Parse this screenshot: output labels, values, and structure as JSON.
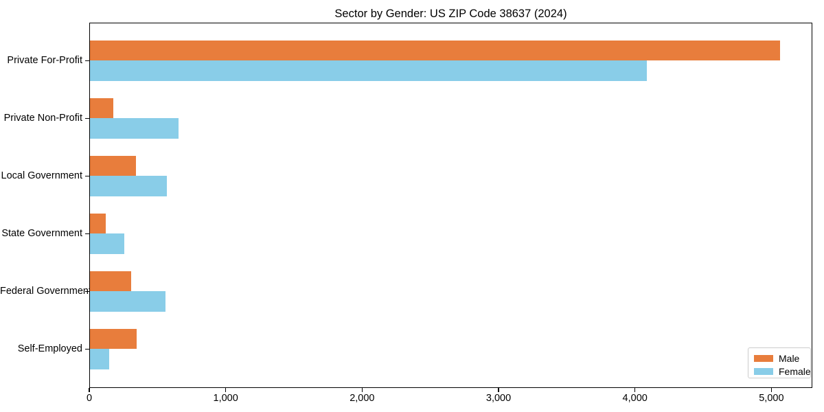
{
  "chart_data": {
    "type": "bar",
    "orientation": "horizontal",
    "title": "Sector by Gender: US ZIP Code 38637 (2024)",
    "categories": [
      "Private For-Profit",
      "Private Non-Profit",
      "Local Government",
      "State Government",
      "Federal Government",
      "Self-Employed"
    ],
    "series": [
      {
        "name": "Male",
        "color": "#e87d3c",
        "values": [
          5060,
          170,
          335,
          115,
          300,
          340
        ]
      },
      {
        "name": "Female",
        "color": "#89cde8",
        "values": [
          4080,
          650,
          565,
          250,
          555,
          140
        ]
      }
    ],
    "xlim": [
      0,
      5300
    ],
    "xticks": [
      0,
      1000,
      2000,
      3000,
      4000,
      5000
    ],
    "xtick_labels": [
      "0",
      "1,000",
      "2,000",
      "3,000",
      "4,000",
      "5,000"
    ],
    "xlabel": "",
    "ylabel": "",
    "grid": false,
    "legend": {
      "position": "lower-right",
      "entries": [
        "Male",
        "Female"
      ]
    }
  }
}
